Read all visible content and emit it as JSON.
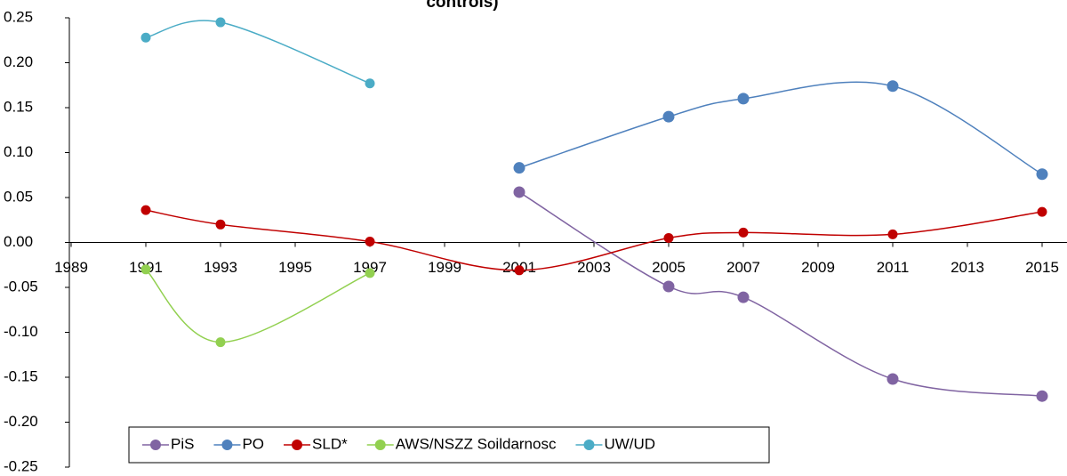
{
  "chart_data": {
    "type": "line",
    "title": "controls)",
    "x": [
      1991,
      1993,
      1997,
      2001,
      2005,
      2007,
      2011,
      2015
    ],
    "series": [
      {
        "name": "PiS",
        "color": "#8064a2",
        "values": [
          null,
          null,
          null,
          0.056,
          -0.049,
          -0.061,
          -0.152,
          -0.171
        ]
      },
      {
        "name": "PO",
        "color": "#4f81bd",
        "values": [
          null,
          null,
          null,
          0.083,
          0.14,
          0.16,
          0.174,
          0.076
        ]
      },
      {
        "name": "SLD*",
        "color": "#c00000",
        "values": [
          0.036,
          0.02,
          0.001,
          -0.031,
          0.005,
          0.011,
          0.009,
          0.034
        ]
      },
      {
        "name": "AWS/NSZZ Soildarnosc",
        "color": "#92d050",
        "values": [
          -0.03,
          -0.111,
          -0.034,
          null,
          null,
          null,
          null,
          null
        ]
      },
      {
        "name": "UW/UD",
        "color": "#4bacc6",
        "values": [
          0.228,
          0.245,
          0.177,
          null,
          null,
          null,
          null,
          null
        ]
      }
    ],
    "xlim": [
      1989,
      2015
    ],
    "xticks": [
      1989,
      1991,
      1993,
      1995,
      1997,
      1999,
      2001,
      2003,
      2005,
      2007,
      2009,
      2011,
      2013,
      2015
    ],
    "ylim": [
      -0.25,
      0.25
    ],
    "yticks": [
      -0.25,
      {
        "value": -0.2,
        "label": "-0.20"
      },
      -0.15,
      {
        "value": -0.1,
        "label": "-0.10"
      },
      -0.05,
      {
        "value": 0,
        "label": "0.00"
      },
      0.05,
      {
        "value": 0.1,
        "label": "0.10"
      },
      0.15,
      {
        "value": 0.2,
        "label": "0.20"
      },
      0.25
    ],
    "smooth": true,
    "legend": "bottom"
  }
}
